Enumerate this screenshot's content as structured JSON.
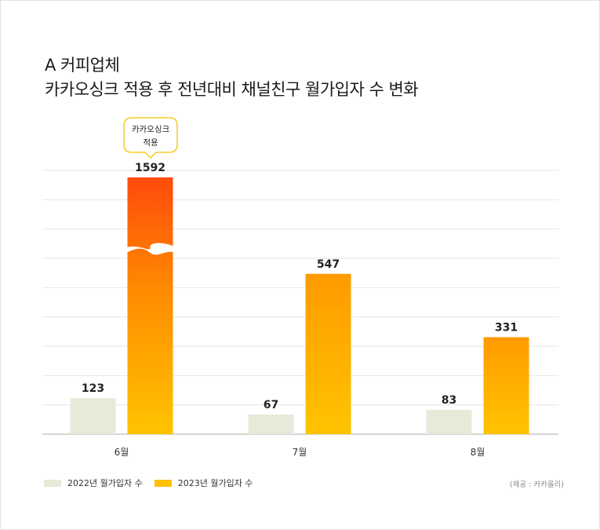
{
  "title_line1": "A 커피업체",
  "title_line2": "카카오싱크 적용 후 전년대비 채널친구 월가입자 수 변화",
  "callout": {
    "line1": "카카오싱크",
    "line2": "적용"
  },
  "legend": {
    "item_2022": "2022년 월가입자 수",
    "item_2023": "2023년 월가입자 수"
  },
  "source": "(제공 : 카카올리)",
  "colors": {
    "y2022": "#e6ead8",
    "y2023_top": "#ff9a00",
    "y2023_bottom": "#ffc400",
    "peak_top": "#ff4a0c",
    "grid": "#e6e6e6",
    "axis": "#bdbdbd"
  },
  "chart_data": {
    "type": "bar",
    "categories": [
      "6월",
      "7월",
      "8월"
    ],
    "series": [
      {
        "name": "2022년 월가입자 수",
        "values": [
          123,
          67,
          83
        ]
      },
      {
        "name": "2023년 월가입자 수",
        "values": [
          1592,
          547,
          331
        ]
      }
    ],
    "ylim": [
      0,
      900
    ],
    "axis_break": true,
    "broken_bar": {
      "category": "6월",
      "series": "2023년 월가입자 수"
    },
    "grid": true,
    "legend_position": "bottom-left",
    "title": "카카오싱크 적용 후 전년대비 채널친구 월가입자 수 변화"
  }
}
